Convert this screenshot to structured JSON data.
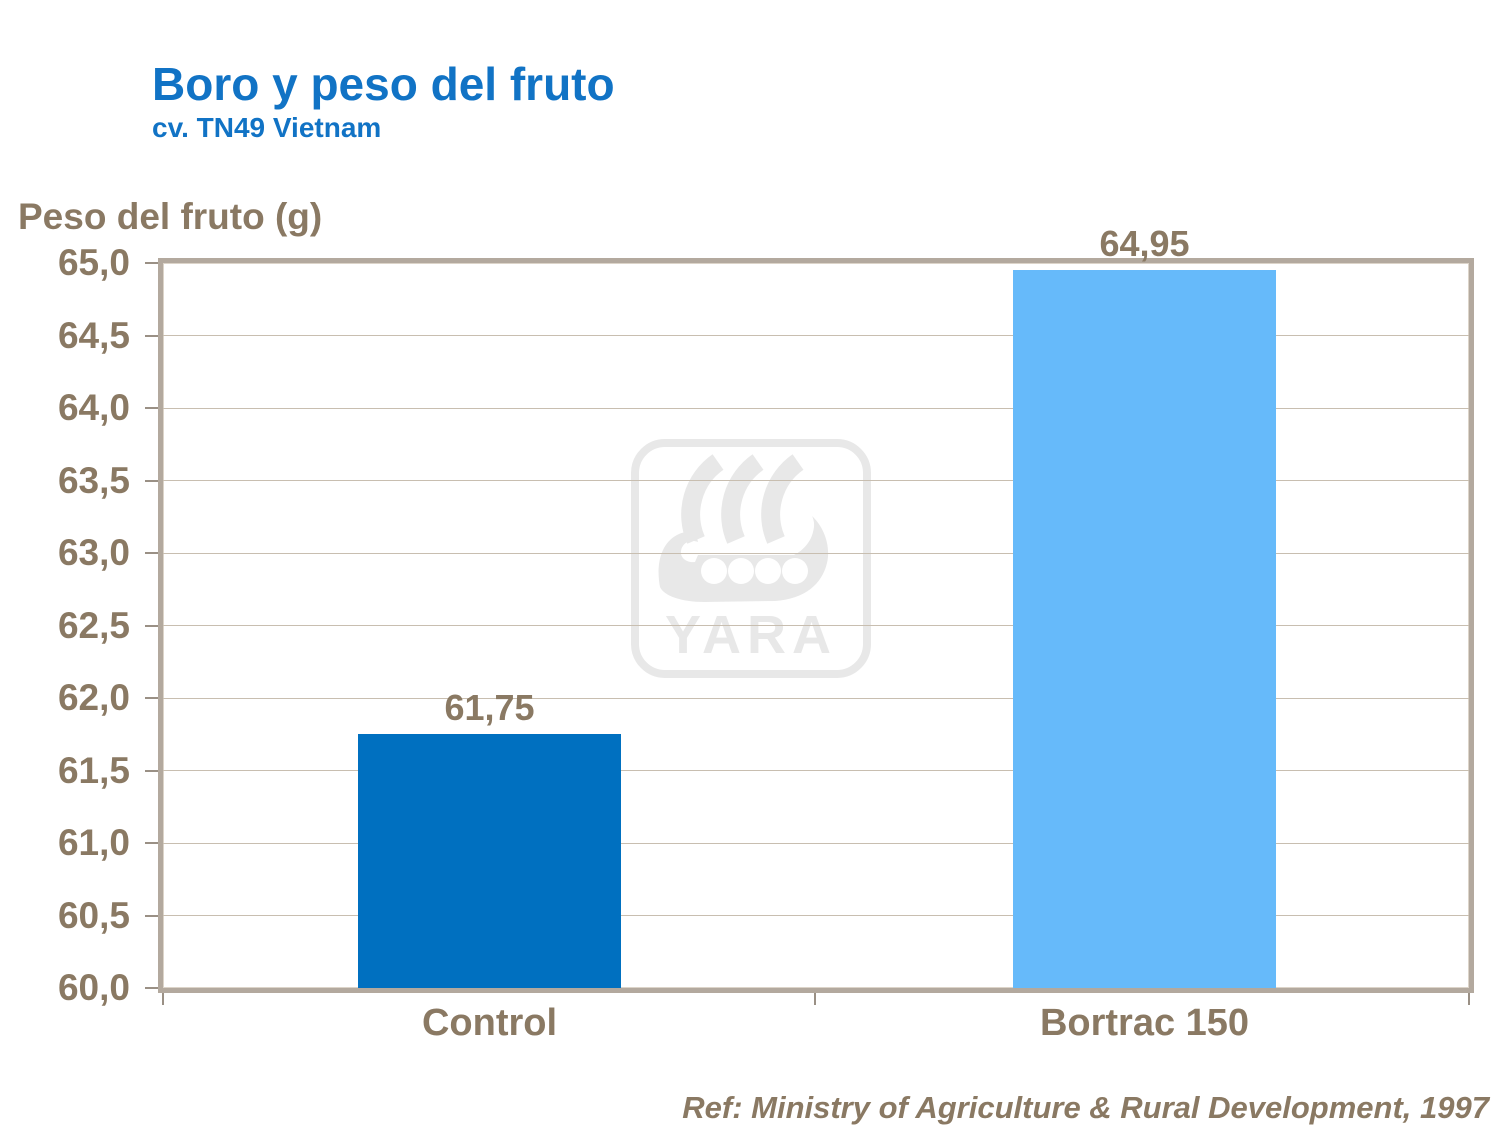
{
  "header": {
    "title": "Boro y peso del fruto",
    "subtitle": "cv. TN49 Vietnam"
  },
  "chart_data": {
    "type": "bar",
    "title": "Boro y peso del fruto",
    "subtitle": "cv. TN49 Vietnam",
    "ylabel": "Peso del fruto (g)",
    "xlabel": "",
    "categories": [
      "Control",
      "Bortrac 150"
    ],
    "values": [
      61.75,
      64.95
    ],
    "value_labels": [
      "61,75",
      "64,95"
    ],
    "bar_colors": [
      "#0070C0",
      "#66BAFA"
    ],
    "ylim": [
      60,
      65
    ],
    "ytick_step": 0.5,
    "yticklabels": [
      "65,0",
      "64,5",
      "64,0",
      "63,5",
      "63,0",
      "62,5",
      "62,0",
      "61,5",
      "61,0",
      "60,5",
      "60,0"
    ],
    "grid": true,
    "legend_position": "none"
  },
  "watermark": {
    "name": "yara-logo",
    "text": "YARA"
  },
  "footer": {
    "reference": "Ref: Ministry of Agriculture & Rural Development, 1997"
  },
  "colors": {
    "title_blue": "#1173C5",
    "text_brown": "#8A7963",
    "bar_control": "#0070C0",
    "bar_bortrac": "#66BAFA",
    "plot_frame": "#B3A99E",
    "gridline": "#C8BEB0",
    "watermark_gray": "#E8E8E8"
  }
}
